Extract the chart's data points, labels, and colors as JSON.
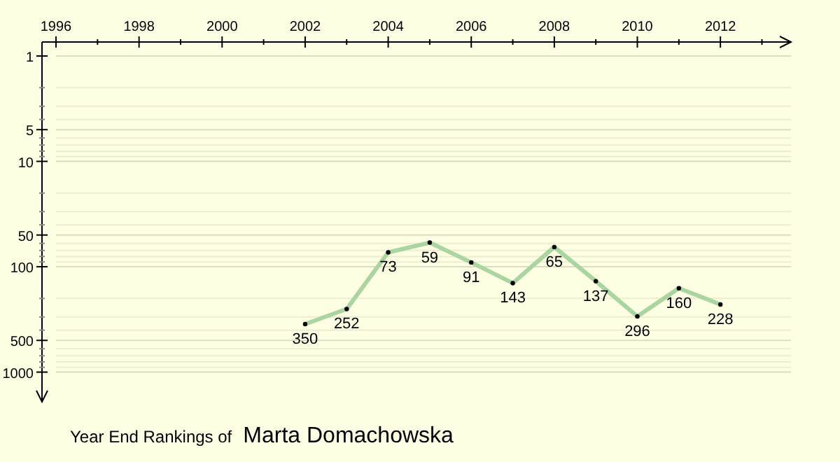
{
  "chart_data": {
    "type": "line",
    "title": "Year End Rankings of",
    "subtitle": "Marta Domachowska",
    "x": [
      2002,
      2003,
      2004,
      2005,
      2006,
      2007,
      2008,
      2009,
      2010,
      2011,
      2012
    ],
    "series": [
      {
        "color": "#a9d5a0",
        "values": [
          350,
          252,
          73,
          59,
          91,
          143,
          65,
          137,
          296,
          160,
          228
        ]
      }
    ],
    "xlim": [
      1996,
      2013.7
    ],
    "xticks": [
      1996,
      {
        "value": 1997,
        "label": null
      },
      1998,
      {
        "value": 1999,
        "label": null
      },
      2000,
      {
        "value": 2001,
        "label": null
      },
      2002,
      {
        "value": 2003,
        "label": null
      },
      2004,
      {
        "value": 2005,
        "label": null
      },
      2006,
      {
        "value": 2007,
        "label": null
      },
      2008,
      {
        "value": 2009,
        "label": null
      },
      2010,
      {
        "value": 2011,
        "label": null
      },
      2012,
      {
        "value": 2013,
        "label": null
      }
    ],
    "ylim": [
      1800,
      1
    ],
    "yticks": [
      1,
      {
        "value": 2,
        "label": null
      },
      {
        "value": 3,
        "label": null
      },
      {
        "value": 4,
        "label": null
      },
      5,
      {
        "value": 6,
        "label": null
      },
      {
        "value": 7,
        "label": null
      },
      {
        "value": 8,
        "label": null
      },
      {
        "value": 9,
        "label": null
      },
      10,
      {
        "value": 20,
        "label": null
      },
      {
        "value": 30,
        "label": null
      },
      {
        "value": 40,
        "label": null
      },
      50,
      {
        "value": 60,
        "label": null
      },
      {
        "value": 70,
        "label": null
      },
      {
        "value": 80,
        "label": null
      },
      {
        "value": 90,
        "label": null
      },
      100,
      {
        "value": 200,
        "label": null
      },
      {
        "value": 300,
        "label": null
      },
      {
        "value": 400,
        "label": null
      },
      500,
      {
        "value": 600,
        "label": null
      },
      {
        "value": 700,
        "label": null
      },
      {
        "value": 800,
        "label": null
      },
      {
        "value": 900,
        "label": null
      },
      1000
    ],
    "log": "y",
    "grid": "y",
    "marker": "circle",
    "line_style": "solid",
    "data_labels": true
  }
}
